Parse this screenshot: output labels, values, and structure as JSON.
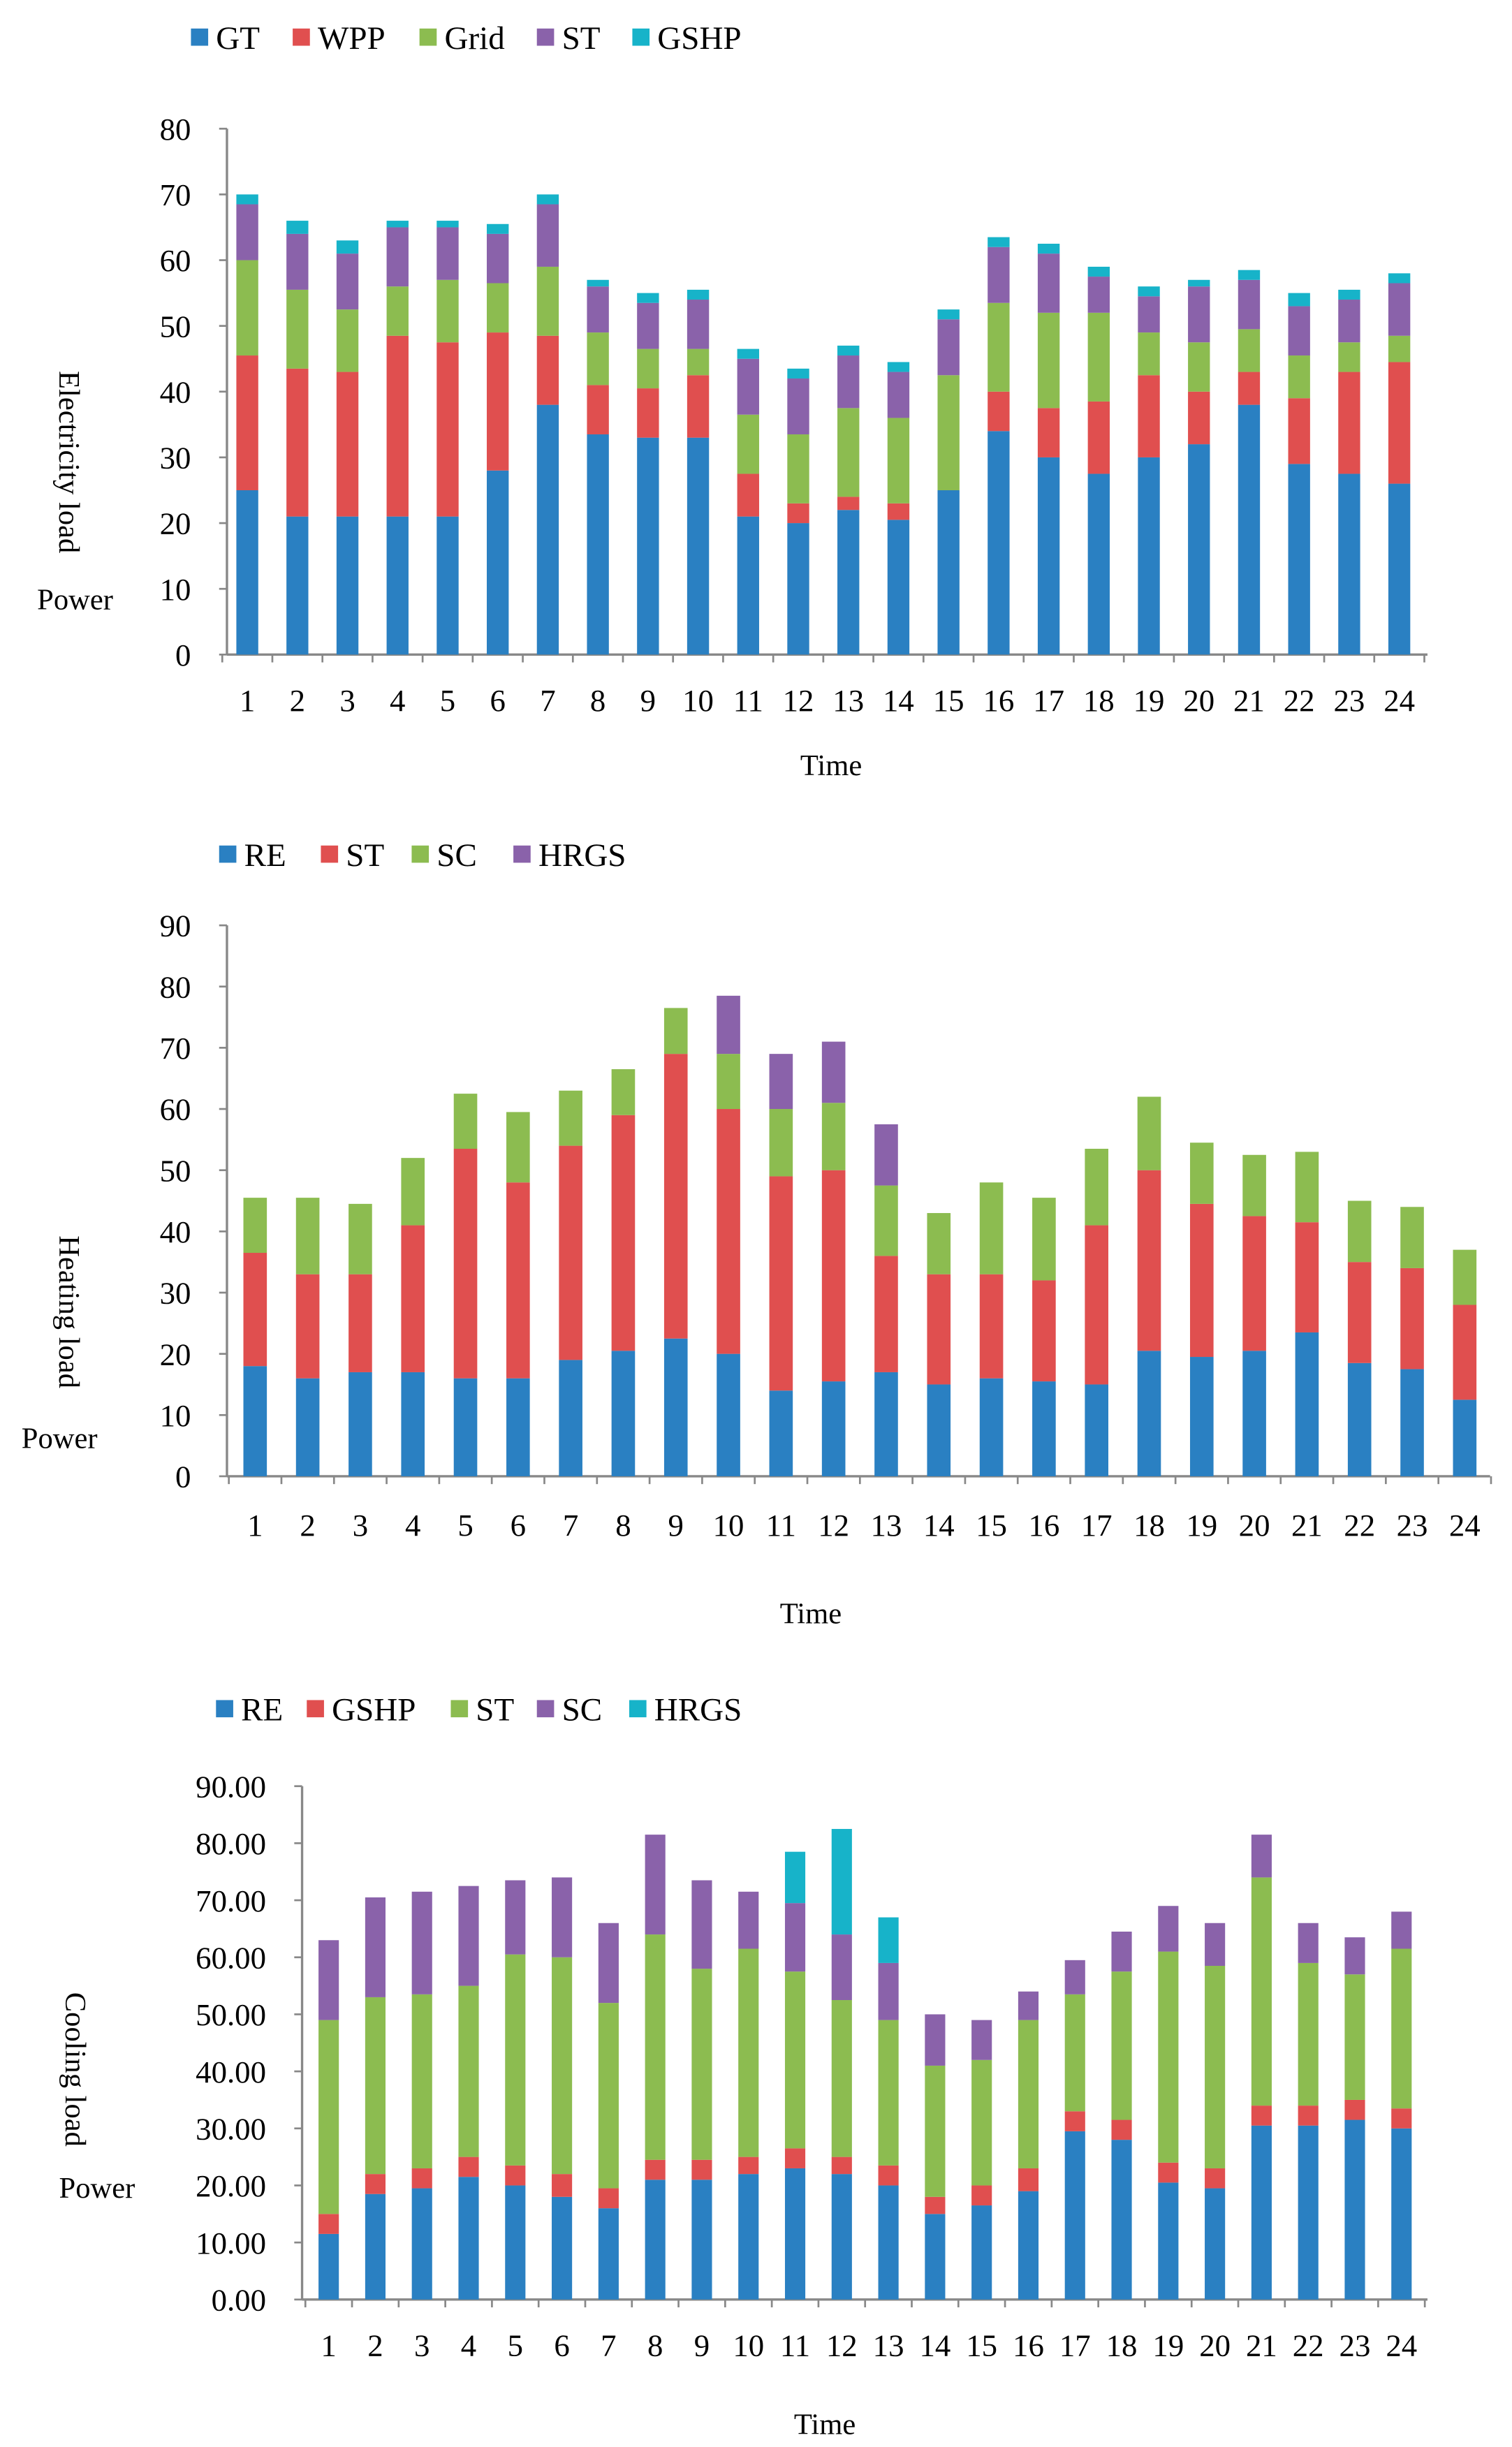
{
  "chart_data": [
    {
      "type": "bar",
      "stacked": true,
      "title": "",
      "ylabel": "Electricity load",
      "ylabel_sub": "Power",
      "xlabel": "Time",
      "ylim": [
        0,
        80
      ],
      "yticks": [
        "0",
        "10",
        "20",
        "30",
        "40",
        "50",
        "60",
        "70",
        "80"
      ],
      "legend_position": "top-left",
      "categories": [
        "1",
        "2",
        "3",
        "4",
        "5",
        "6",
        "7",
        "8",
        "9",
        "10",
        "11",
        "12",
        "13",
        "14",
        "15",
        "16",
        "17",
        "18",
        "19",
        "20",
        "21",
        "22",
        "23",
        "24"
      ],
      "series": [
        {
          "name": "GT",
          "color": "#2a80c2",
          "values": [
            25,
            21,
            21,
            21,
            21,
            28,
            38,
            33.5,
            33,
            33,
            21,
            20,
            22,
            20.5,
            25,
            34,
            30,
            27.5,
            30,
            32,
            38,
            29,
            27.5,
            26
          ]
        },
        {
          "name": "WPP",
          "color": "#e04f4f",
          "values": [
            20.5,
            22.5,
            22,
            27.5,
            26.5,
            21,
            10.5,
            7.5,
            7.5,
            9.5,
            6.5,
            3,
            2,
            2.5,
            0,
            6,
            7.5,
            11,
            12.5,
            8,
            5,
            10,
            15.5,
            18.5
          ]
        },
        {
          "name": "Grid",
          "color": "#8cbc50",
          "values": [
            14.5,
            12,
            9.5,
            7.5,
            9.5,
            7.5,
            10.5,
            8,
            6,
            4,
            9,
            10.5,
            13.5,
            13,
            17.5,
            13.5,
            14.5,
            13.5,
            6.5,
            7.5,
            6.5,
            6.5,
            4.5,
            4
          ]
        },
        {
          "name": "ST",
          "color": "#8a62aa",
          "values": [
            8.5,
            8.5,
            8.5,
            9,
            8,
            7.5,
            9.5,
            7,
            7,
            7.5,
            8.5,
            8.5,
            8,
            7,
            8.5,
            8.5,
            9,
            5.5,
            5.5,
            8.5,
            7.5,
            7.5,
            6.5,
            8
          ]
        },
        {
          "name": "GSHP",
          "color": "#17b3c9",
          "values": [
            1.5,
            2,
            2,
            1,
            1,
            1.5,
            1.5,
            1,
            1.5,
            1.5,
            1.5,
            1.5,
            1.5,
            1.5,
            1.5,
            1.5,
            1.5,
            1.5,
            1.5,
            1,
            1.5,
            2,
            1.5,
            1.5
          ]
        }
      ]
    },
    {
      "type": "bar",
      "stacked": true,
      "title": "",
      "ylabel": "Heating load",
      "ylabel_sub": "Power",
      "xlabel": "Time",
      "ylim": [
        0,
        90
      ],
      "yticks": [
        "0",
        "10",
        "20",
        "30",
        "40",
        "50",
        "60",
        "70",
        "80",
        "90"
      ],
      "legend_position": "top-left",
      "categories": [
        "1",
        "2",
        "3",
        "4",
        "5",
        "6",
        "7",
        "8",
        "9",
        "10",
        "11",
        "12",
        "13",
        "14",
        "15",
        "16",
        "17",
        "18",
        "19",
        "20",
        "21",
        "22",
        "23",
        "24"
      ],
      "series": [
        {
          "name": "RE",
          "color": "#2a80c2",
          "values": [
            18,
            16,
            17,
            17,
            16,
            16,
            19,
            20.5,
            22.5,
            20,
            14,
            15.5,
            17,
            15,
            16,
            15.5,
            15,
            20.5,
            19.5,
            20.5,
            23.5,
            18.5,
            17.5,
            12.5
          ]
        },
        {
          "name": "ST",
          "color": "#e04f4f",
          "values": [
            18.5,
            17,
            16,
            24,
            37.5,
            32,
            35,
            38.5,
            46.5,
            40,
            35,
            34.5,
            19,
            18,
            17,
            16.5,
            26,
            29.5,
            25,
            22,
            18,
            16.5,
            16.5,
            15.5
          ]
        },
        {
          "name": "SC",
          "color": "#8cbc50",
          "values": [
            9,
            12.5,
            11.5,
            11,
            9,
            11.5,
            9,
            7.5,
            7.5,
            9,
            11,
            11,
            11.5,
            10,
            15,
            13.5,
            12.5,
            12,
            10,
            10,
            11.5,
            10,
            10,
            9
          ]
        },
        {
          "name": "HRGS",
          "color": "#8a62aa",
          "values": [
            0,
            0,
            0,
            0,
            0,
            0,
            0,
            0,
            0,
            9.5,
            9,
            10,
            10,
            0,
            0,
            0,
            0,
            0,
            0,
            0,
            0,
            0,
            0,
            0
          ]
        }
      ]
    },
    {
      "type": "bar",
      "stacked": true,
      "title": "",
      "ylabel": "Cooling load",
      "ylabel_sub": "Power",
      "xlabel": "Time",
      "ylim": [
        0,
        90
      ],
      "yticks": [
        "0.00",
        "10.00",
        "20.00",
        "30.00",
        "40.00",
        "50.00",
        "60.00",
        "70.00",
        "80.00",
        "90.00"
      ],
      "legend_position": "top-left",
      "categories": [
        "1",
        "2",
        "3",
        "4",
        "5",
        "6",
        "7",
        "8",
        "9",
        "10",
        "11",
        "12",
        "13",
        "14",
        "15",
        "16",
        "17",
        "18",
        "19",
        "20",
        "21",
        "22",
        "23",
        "24"
      ],
      "series": [
        {
          "name": "RE",
          "color": "#2a80c2",
          "values": [
            11.5,
            18.5,
            19.5,
            21.5,
            20,
            18,
            16,
            21,
            21,
            22,
            23,
            22,
            20,
            15,
            16.5,
            19,
            29.5,
            28,
            20.5,
            19.5,
            30.5,
            30.5,
            31.5,
            30
          ]
        },
        {
          "name": "GSHP",
          "color": "#e04f4f",
          "values": [
            3.5,
            3.5,
            3.5,
            3.5,
            3.5,
            4,
            3.5,
            3.5,
            3.5,
            3,
            3.5,
            3,
            3.5,
            3,
            3.5,
            4,
            3.5,
            3.5,
            3.5,
            3.5,
            3.5,
            3.5,
            3.5,
            3.5
          ]
        },
        {
          "name": "ST",
          "color": "#8cbc50",
          "values": [
            34,
            31,
            30.5,
            30,
            37,
            38,
            32.5,
            39.5,
            33.5,
            36.5,
            31,
            27.5,
            25.5,
            23,
            22,
            26,
            20.5,
            26,
            37,
            35.5,
            40,
            25,
            22,
            28
          ]
        },
        {
          "name": "SC",
          "color": "#8a62aa",
          "values": [
            14,
            17.5,
            18,
            17.5,
            13,
            14,
            14,
            17.5,
            15.5,
            10,
            12,
            11.5,
            10,
            9,
            7,
            5,
            6,
            7,
            8,
            7.5,
            7.5,
            7,
            6.5,
            6.5
          ]
        },
        {
          "name": "HRGS",
          "color": "#17b3c9",
          "values": [
            0,
            0,
            0,
            0,
            0,
            0,
            0,
            0,
            0,
            0,
            9,
            18.5,
            8,
            0,
            0,
            0,
            0,
            0,
            0,
            0,
            0,
            0,
            0,
            0
          ]
        }
      ]
    }
  ]
}
